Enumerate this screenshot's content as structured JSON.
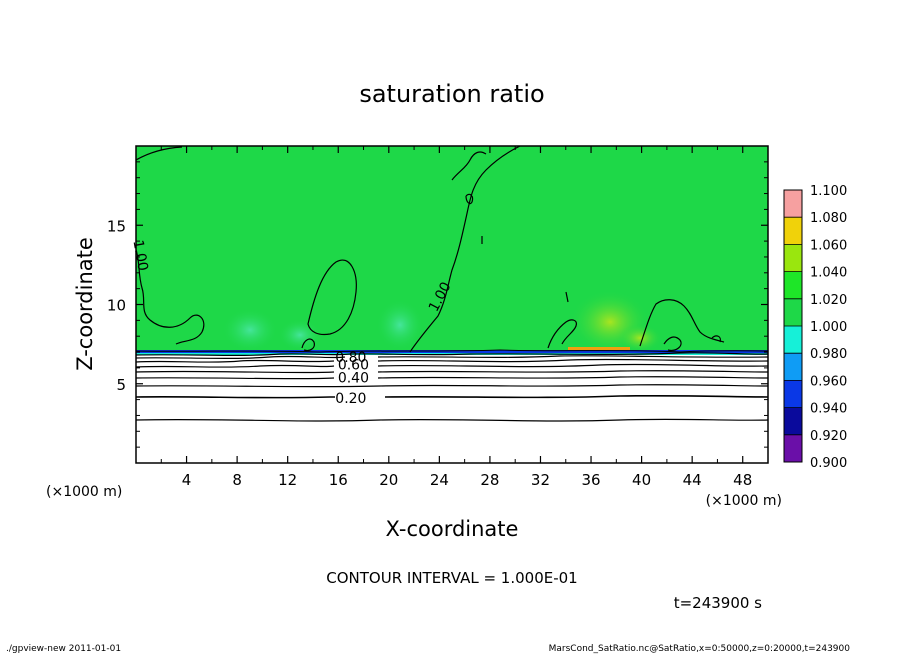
{
  "chart_data": {
    "type": "heatmap",
    "title": "saturation ratio",
    "xlabel": "X-coordinate",
    "ylabel": "Z-coordinate",
    "x_unit_label": "(×1000 m)",
    "y_unit_label": "(×1000 m)",
    "xlim": [
      0,
      50
    ],
    "ylim": [
      0,
      20
    ],
    "x_ticks": [
      4,
      8,
      12,
      16,
      20,
      24,
      28,
      32,
      36,
      40,
      44,
      48
    ],
    "y_ticks": [
      5,
      10,
      15
    ],
    "colorbar": {
      "levels": [
        0.9,
        0.92,
        0.94,
        0.96,
        0.98,
        1.0,
        1.02,
        1.04,
        1.06,
        1.08,
        1.1
      ],
      "labels": [
        "0.900",
        "0.920",
        "0.940",
        "0.960",
        "0.980",
        "1.000",
        "1.020",
        "1.040",
        "1.060",
        "1.080",
        "1.100"
      ],
      "colors": [
        "#6a0fa8",
        "#0a0a9c",
        "#0a38e6",
        "#0f9cf5",
        "#16f0d8",
        "#1ed848",
        "#1ee628",
        "#9ae60e",
        "#f0d20a",
        "#f2660a",
        "#f06a6a",
        "#f6a0a0"
      ]
    },
    "contour_labels": [
      {
        "text": "0.20",
        "x": 17.0,
        "z": 4.1
      },
      {
        "text": "0.40",
        "x": 17.2,
        "z": 5.4
      },
      {
        "text": "0.60",
        "x": 17.2,
        "z": 6.2
      },
      {
        "text": "0.80",
        "x": 17.0,
        "z": 6.7
      },
      {
        "text": "1.00",
        "x": 24.0,
        "z": 10.5
      },
      {
        "text": "1.00",
        "x": 0.4,
        "z": 13.1
      }
    ],
    "contour_interval_text": "CONTOUR INTERVAL = 1.000E-01",
    "time_text": "t=243900 s"
  },
  "footer": {
    "left": "./gpview-new   2011-01-01",
    "right": "MarsCond_SatRatio.nc@SatRatio,x=0:50000,z=0:20000,t=243900"
  }
}
